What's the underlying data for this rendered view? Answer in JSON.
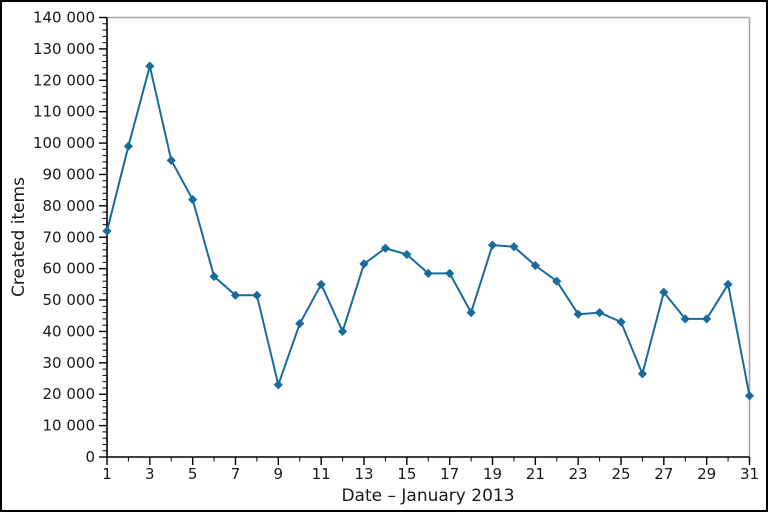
{
  "window": {
    "background": "#ffffff",
    "border_color": "#000000"
  },
  "chart_data": {
    "type": "line",
    "title": "",
    "xlabel": "Date – January 2013",
    "ylabel": "Created items",
    "x": [
      1,
      2,
      3,
      4,
      5,
      6,
      7,
      8,
      9,
      10,
      11,
      12,
      13,
      14,
      15,
      16,
      17,
      18,
      19,
      20,
      21,
      22,
      23,
      24,
      25,
      26,
      27,
      28,
      29,
      30,
      31
    ],
    "values": [
      72000,
      99000,
      124500,
      94500,
      82000,
      57500,
      51500,
      51500,
      23000,
      42500,
      55000,
      40000,
      61500,
      66500,
      64500,
      58500,
      58500,
      46000,
      67500,
      67000,
      61000,
      56000,
      45500,
      46000,
      43000,
      26500,
      52500,
      44000,
      44000,
      55000,
      19500
    ],
    "series": [
      {
        "name": "Created items",
        "values": [
          72000,
          99000,
          124500,
          94500,
          82000,
          57500,
          51500,
          51500,
          23000,
          42500,
          55000,
          40000,
          61500,
          66500,
          64500,
          58500,
          58500,
          46000,
          67500,
          67000,
          61000,
          56000,
          45500,
          46000,
          43000,
          26500,
          52500,
          44000,
          44000,
          55000,
          19500
        ]
      }
    ],
    "xlim": [
      1,
      31
    ],
    "ylim": [
      0,
      140000
    ],
    "xtick_major": [
      1,
      3,
      5,
      7,
      9,
      11,
      13,
      15,
      17,
      19,
      21,
      23,
      25,
      27,
      29,
      31
    ],
    "xtick_minor_step": 1,
    "ytick_step": 10000,
    "ytick_minor_step": 2000,
    "ytick_labels": [
      "0",
      "10 000",
      "20 000",
      "30 000",
      "40 000",
      "50 000",
      "60 000",
      "70 000",
      "80 000",
      "90 000",
      "100 000",
      "110 000",
      "120 000",
      "130 000",
      "140 000"
    ],
    "grid": false,
    "legend": "none",
    "marker": "diamond",
    "line_color": "#176c9c",
    "marker_color": "#176c9c",
    "axis_color": "#000000",
    "frame_color": "#a6a6a6",
    "text_color": "#1a1a1a"
  }
}
